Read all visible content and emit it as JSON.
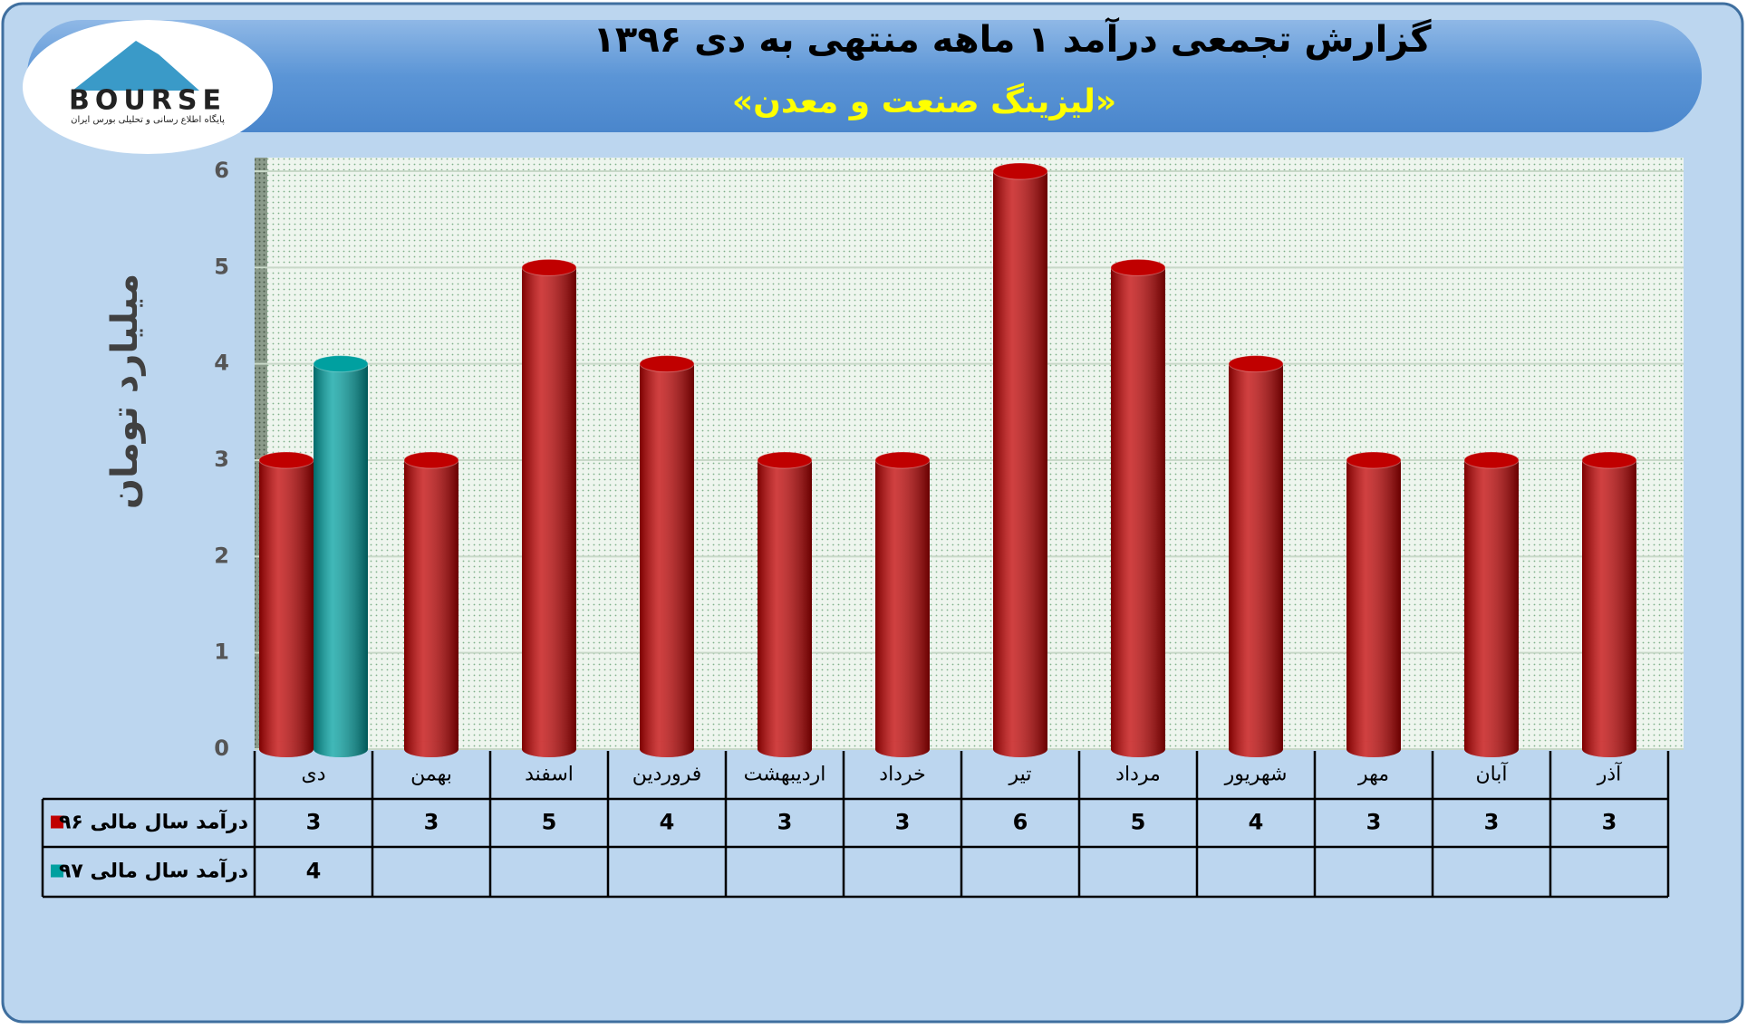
{
  "logo": {
    "name": "BOURSE",
    "tagline": "پایگاه اطلاع رسانی و تحلیلی بورس ایران"
  },
  "chart_data": {
    "type": "bar",
    "title": "گزارش تجمعی درآمد ۱ ماهه منتهی به دی ۱۳۹۶",
    "subtitle": "«لیزینگ صنعت و معدن»",
    "y_label": "میلیارد تومان",
    "categories": [
      "دی",
      "بهمن",
      "اسفند",
      "فروردین",
      "اردیبهشت",
      "خرداد",
      "تیر",
      "مرداد",
      "شهریور",
      "مهر",
      "آبان",
      "آذر"
    ],
    "series": [
      {
        "name": "درآمد سال مالی ۹۶",
        "color": "#c00000",
        "values": [
          3,
          3,
          5,
          4,
          3,
          3,
          6,
          5,
          4,
          3,
          3,
          3
        ]
      },
      {
        "name": "درآمد سال مالی ۹۷",
        "color": "#00a0a0",
        "values": [
          4,
          null,
          null,
          null,
          null,
          null,
          null,
          null,
          null,
          null,
          null,
          null
        ]
      }
    ],
    "ylim": [
      0,
      6
    ],
    "yticks": [
      0,
      1,
      2,
      3,
      4,
      5,
      6
    ],
    "grid": true
  }
}
